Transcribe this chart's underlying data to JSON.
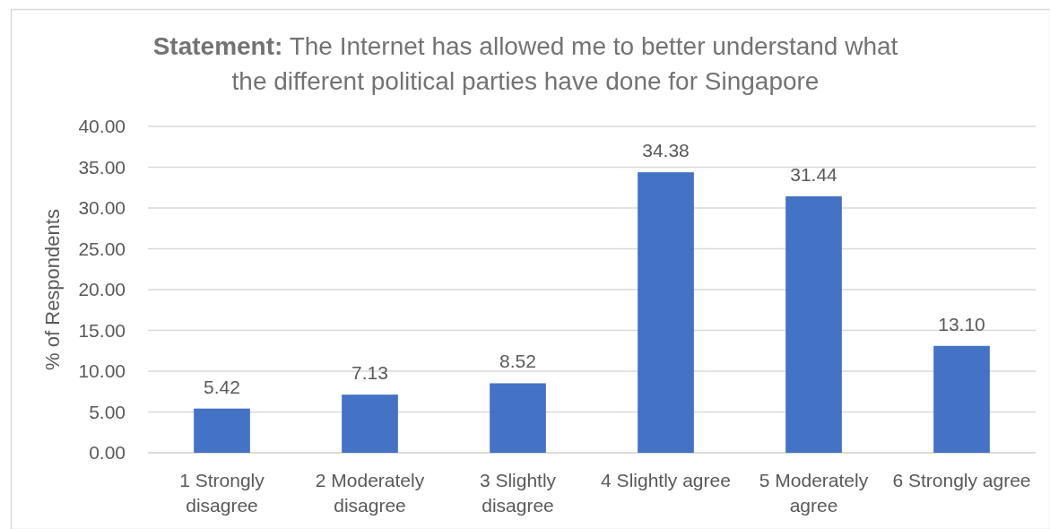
{
  "chart_data": {
    "type": "bar",
    "title": "Statement: The Internet has allowed me to better understand what the different political parties have done for Singapore",
    "ylabel": "% of Respondents",
    "categories": [
      "1 Strongly disagree",
      "2 Moderately disagree",
      "3 Slightly disagree",
      "4 Slightly agree",
      "5 Moderately agree",
      "6 Strongly agree"
    ],
    "values": [
      5.42,
      7.13,
      8.52,
      34.38,
      31.44,
      13.1
    ],
    "value_labels": [
      "5.42",
      "7.13",
      "8.52",
      "34.38",
      "31.44",
      "13.10"
    ],
    "color": "#4472c4",
    "ylim": [
      0,
      40
    ],
    "yticks": [
      {
        "value": 0,
        "label": "0.00"
      },
      {
        "value": 5,
        "label": "5.00"
      },
      {
        "value": 10,
        "label": "10.00"
      },
      {
        "value": 15,
        "label": "15.00"
      },
      {
        "value": 20,
        "label": "20.00"
      },
      {
        "value": 25,
        "label": "25.00"
      },
      {
        "value": 30,
        "label": "30.00"
      },
      {
        "value": 35,
        "label": "35.00"
      },
      {
        "value": 40,
        "label": "40.00"
      }
    ],
    "grid": "y"
  }
}
